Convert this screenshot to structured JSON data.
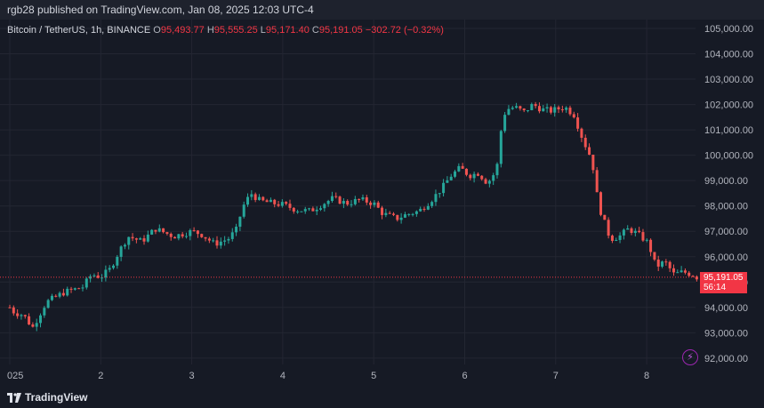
{
  "published": "rgb28 published on TradingView.com, Jan 08, 2025 12:03 UTC-4",
  "legend": {
    "symbol": "Bitcoin / TetherUS, 1h, BINANCE",
    "o_label": "O",
    "o_value": "95,493.77",
    "h_label": "H",
    "h_value": "95,555.25",
    "l_label": "L",
    "l_value": "95,171.40",
    "c_label": "C",
    "c_value": "95,191.05",
    "change": "−302.72 (−0.32%)"
  },
  "last_price": {
    "value": "95,191.05",
    "countdown": "56:14"
  },
  "footer": {
    "brand": "TradingView"
  },
  "colors": {
    "up": "#26a69a",
    "down": "#ef5350",
    "background": "#161a25",
    "grid": "#232632",
    "axis_text": "#b2b5be"
  },
  "icons": {
    "flash": "lightning-icon",
    "logo": "tradingview-logo-icon"
  },
  "chart_data": {
    "type": "candlestick",
    "title": "Bitcoin / TetherUS, 1h, BINANCE",
    "x_tick_labels": [
      "025",
      "2",
      "3",
      "4",
      "5",
      "6",
      "7",
      "8"
    ],
    "y_tick_labels": [
      "92,000.00",
      "93,000.00",
      "94,000.00",
      "95,000.00",
      "96,000.00",
      "97,000.00",
      "98,000.00",
      "99,000.00",
      "100,000.00",
      "101,000.00",
      "102,000.00",
      "103,000.00",
      "104,000.00",
      "105,000.00"
    ],
    "ylim": [
      91750,
      105350
    ],
    "last_price_line": 95191.05,
    "close_path_points": [
      [
        1.0,
        94000
      ],
      [
        1.05,
        93800
      ],
      [
        1.15,
        93700
      ],
      [
        1.25,
        93200
      ],
      [
        1.4,
        94200
      ],
      [
        1.6,
        94600
      ],
      [
        1.8,
        94800
      ],
      [
        1.9,
        95300
      ],
      [
        2.0,
        95200
      ],
      [
        2.1,
        95500
      ],
      [
        2.2,
        96200
      ],
      [
        2.3,
        96800
      ],
      [
        2.45,
        96600
      ],
      [
        2.6,
        97100
      ],
      [
        2.8,
        96800
      ],
      [
        3.0,
        97000
      ],
      [
        3.1,
        96900
      ],
      [
        3.25,
        96500
      ],
      [
        3.4,
        96700
      ],
      [
        3.5,
        97100
      ],
      [
        3.55,
        97900
      ],
      [
        3.65,
        98500
      ],
      [
        3.75,
        98200
      ],
      [
        3.9,
        98100
      ],
      [
        4.0,
        98050
      ],
      [
        4.15,
        97850
      ],
      [
        4.3,
        97800
      ],
      [
        4.4,
        98000
      ],
      [
        4.55,
        98300
      ],
      [
        4.7,
        98100
      ],
      [
        4.85,
        98250
      ],
      [
        5.0,
        98100
      ],
      [
        5.1,
        97700
      ],
      [
        5.25,
        97500
      ],
      [
        5.35,
        97650
      ],
      [
        5.5,
        97800
      ],
      [
        5.65,
        98300
      ],
      [
        5.75,
        98700
      ],
      [
        5.85,
        99200
      ],
      [
        5.95,
        99500
      ],
      [
        6.05,
        99200
      ],
      [
        6.15,
        99300
      ],
      [
        6.25,
        98900
      ],
      [
        6.35,
        99400
      ],
      [
        6.4,
        101000
      ],
      [
        6.45,
        101800
      ],
      [
        6.55,
        101900
      ],
      [
        6.65,
        101700
      ],
      [
        6.75,
        102000
      ],
      [
        6.85,
        101800
      ],
      [
        6.95,
        101750
      ],
      [
        7.1,
        101900
      ],
      [
        7.2,
        101600
      ],
      [
        7.3,
        100600
      ],
      [
        7.4,
        99800
      ],
      [
        7.45,
        98500
      ],
      [
        7.5,
        97700
      ],
      [
        7.55,
        97200
      ],
      [
        7.6,
        96700
      ],
      [
        7.7,
        96800
      ],
      [
        7.8,
        97100
      ],
      [
        7.9,
        96900
      ],
      [
        8.0,
        96600
      ],
      [
        8.05,
        96200
      ],
      [
        8.1,
        95600
      ],
      [
        8.2,
        95800
      ],
      [
        8.3,
        95300
      ],
      [
        8.4,
        95400
      ],
      [
        8.5,
        95300
      ],
      [
        8.55,
        95191.05
      ]
    ]
  }
}
